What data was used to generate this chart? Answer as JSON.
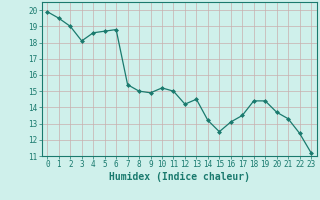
{
  "x": [
    0,
    1,
    2,
    3,
    4,
    5,
    6,
    7,
    8,
    9,
    10,
    11,
    12,
    13,
    14,
    15,
    16,
    17,
    18,
    19,
    20,
    21,
    22,
    23
  ],
  "y": [
    19.9,
    19.5,
    19.0,
    18.1,
    18.6,
    18.7,
    18.8,
    15.4,
    15.0,
    14.9,
    15.2,
    15.0,
    14.2,
    14.5,
    13.2,
    12.5,
    13.1,
    13.5,
    14.4,
    14.4,
    13.7,
    13.3,
    12.4,
    11.2
  ],
  "xlabel": "Humidex (Indice chaleur)",
  "xlim": [
    -0.5,
    23.5
  ],
  "ylim": [
    11,
    20.5
  ],
  "yticks": [
    11,
    12,
    13,
    14,
    15,
    16,
    17,
    18,
    19,
    20
  ],
  "xticks": [
    0,
    1,
    2,
    3,
    4,
    5,
    6,
    7,
    8,
    9,
    10,
    11,
    12,
    13,
    14,
    15,
    16,
    17,
    18,
    19,
    20,
    21,
    22,
    23
  ],
  "line_color": "#1a7a6e",
  "marker": "D",
  "marker_size": 2.0,
  "bg_color": "#cff0eb",
  "grid_color": "#c8aeae",
  "axes_color": "#1a7a6e",
  "tick_label_color": "#1a7a6e",
  "xlabel_color": "#1a7a6e",
  "xlabel_fontsize": 7.0,
  "tick_fontsize": 5.5
}
